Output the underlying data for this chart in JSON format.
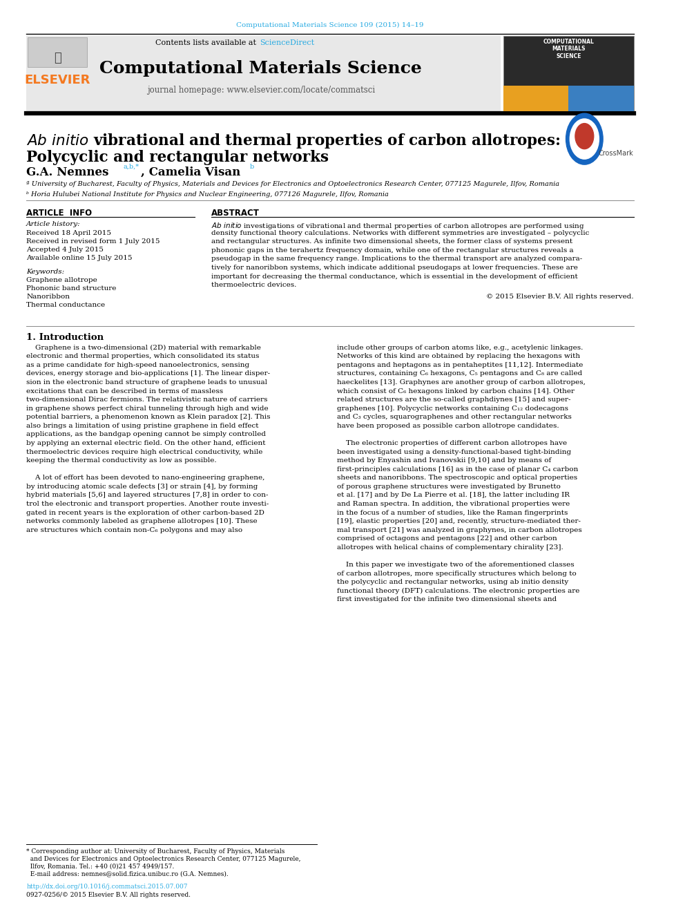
{
  "page_width": 9.92,
  "page_height": 13.23,
  "background_color": "#ffffff",
  "journal_ref_color": "#29abe2",
  "journal_ref": "Computational Materials Science 109 (2015) 14–19",
  "header_bg": "#e8e8e8",
  "contents_text": "Contents lists available at ",
  "sciencedirect_text": "ScienceDirect",
  "sciencedirect_color": "#29abe2",
  "journal_title": "Computational Materials Science",
  "journal_homepage": "journal homepage: www.elsevier.com/locate/commatsci",
  "elsevier_color": "#f47920",
  "elsevier_text": "ELSEVIER",
  "paper_title_rest": " vibrational and thermal properties of carbon allotropes:",
  "paper_title_line2": "Polycyclic and rectangular networks",
  "authors_name": "G.A. Nemnes",
  "authors_super": "a,b,*",
  "authors_rest": ", Camelia Visan",
  "authors_super2": "b",
  "affil_a": "ª University of Bucharest, Faculty of Physics, Materials and Devices for Electronics and Optoelectronics Research Center, 077125 Magurele, Ilfov, Romania",
  "affil_b": "ᵇ Horia Hulubei National Institute for Physics and Nuclear Engineering, 077126 Magurele, Ilfov, Romania",
  "article_info_title": "ARTICLE  INFO",
  "article_history_title": "Article history:",
  "received": "Received 18 April 2015",
  "revised": "Received in revised form 1 July 2015",
  "accepted": "Accepted 4 July 2015",
  "available": "Available online 15 July 2015",
  "keywords_title": "Keywords:",
  "keyword1": "Graphene allotrope",
  "keyword2": "Phononic band structure",
  "keyword3": "Nanoribbon",
  "keyword4": "Thermal conductance",
  "abstract_title": "ABSTRACT",
  "copyright": "© 2015 Elsevier B.V. All rights reserved.",
  "section1_title": "1. Introduction",
  "doi_text": "http://dx.doi.org/10.1016/j.commatsci.2015.07.007",
  "issn_text": "0927-0256/© 2015 Elsevier B.V. All rights reserved.",
  "abstract_lines": [
    "Ab initio investigations of vibrational and thermal properties of carbon allotropes are performed using",
    "density functional theory calculations. Networks with different symmetries are investigated – polycyclic",
    "and rectangular structures. As infinite two dimensional sheets, the former class of systems present",
    "phononic gaps in the terahertz frequency domain, while one of the rectangular structures reveals a",
    "pseudogap in the same frequency range. Implications to the thermal transport are analyzed compara-",
    "tively for nanoribbon systems, which indicate additional pseudogaps at lower frequencies. These are",
    "important for decreasing the thermal conductance, which is essential in the development of efficient",
    "thermoelectric devices."
  ],
  "intro_lines_left": [
    "    Graphene is a two-dimensional (2D) material with remarkable",
    "electronic and thermal properties, which consolidated its status",
    "as a prime candidate for high-speed nanoelectronics, sensing",
    "devices, energy storage and bio-applications [1]. The linear disper-",
    "sion in the electronic band structure of graphene leads to unusual",
    "excitations that can be described in terms of massless",
    "two-dimensional Dirac fermions. The relativistic nature of carriers",
    "in graphene shows perfect chiral tunneling through high and wide",
    "potential barriers, a phenomenon known as Klein paradox [2]. This",
    "also brings a limitation of using pristine graphene in field effect",
    "applications, as the bandgap opening cannot be simply controlled",
    "by applying an external electric field. On the other hand, efficient",
    "thermoelectric devices require high electrical conductivity, while",
    "keeping the thermal conductivity as low as possible.",
    "",
    "    A lot of effort has been devoted to nano-engineering graphene,",
    "by introducing atomic scale defects [3] or strain [4], by forming",
    "hybrid materials [5,6] and layered structures [7,8] in order to con-",
    "trol the electronic and transport properties. Another route investi-",
    "gated in recent years is the exploration of other carbon-based 2D",
    "networks commonly labeled as graphene allotropes [10]. These",
    "are structures which contain non-C₆ polygons and may also"
  ],
  "intro_lines_right": [
    "include other groups of carbon atoms like, e.g., acetylenic linkages.",
    "Networks of this kind are obtained by replacing the hexagons with",
    "pentagons and heptagons as in pentaheptites [11,12]. Intermediate",
    "structures, containing C₆ hexagons, C₅ pentagons and C₈ are called",
    "haeckelites [13]. Graphynes are another group of carbon allotropes,",
    "which consist of C₆ hexagons linked by carbon chains [14]. Other",
    "related structures are the so-called graphdiynes [15] and super-",
    "graphenes [10]. Polycyclic networks containing C₁₂ dodecagons",
    "and C₃ cycles, squarographenes and other rectangular networks",
    "have been proposed as possible carbon allotrope candidates.",
    "",
    "    The electronic properties of different carbon allotropes have",
    "been investigated using a density-functional-based tight-binding",
    "method by Enyashin and Ivanovskii [9,10] and by means of",
    "first-principles calculations [16] as in the case of planar C₄ carbon",
    "sheets and nanoribbons. The spectroscopic and optical properties",
    "of porous graphene structures were investigated by Brunetto",
    "et al. [17] and by De La Pierre et al. [18], the latter including IR",
    "and Raman spectra. In addition, the vibrational properties were",
    "in the focus of a number of studies, like the Raman fingerprints",
    "[19], elastic properties [20] and, recently, structure-mediated ther-",
    "mal transport [21] was analyzed in graphynes, in carbon allotropes",
    "comprised of octagons and pentagons [22] and other carbon",
    "allotropes with helical chains of complementary chirality [23].",
    "",
    "    In this paper we investigate two of the aforementioned classes",
    "of carbon allotropes, more specifically structures which belong to",
    "the polycyclic and rectangular networks, using ab initio density",
    "functional theory (DFT) calculations. The electronic properties are",
    "first investigated for the infinite two dimensional sheets and"
  ],
  "footnote_lines": [
    "* Corresponding author at: University of Bucharest, Faculty of Physics, Materials",
    "  and Devices for Electronics and Optoelectronics Research Center, 077125 Magurele,",
    "  Ilfov, Romania. Tel.: +40 (0)21 457 4949/157.",
    "  E-mail address: nemnes@solid.fizica.unibuc.ro (G.A. Nemnes)."
  ]
}
